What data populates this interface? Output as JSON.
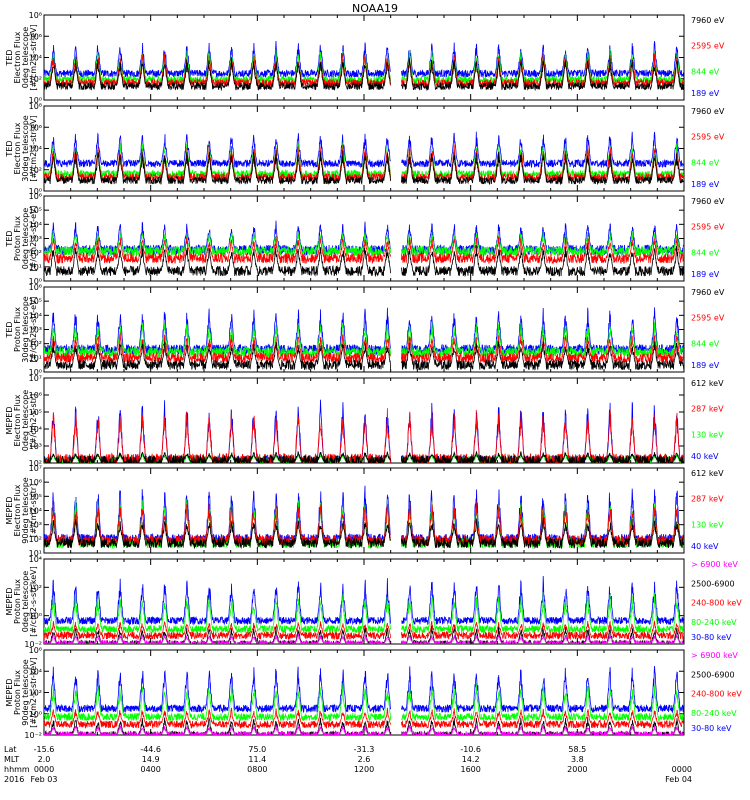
{
  "title": "NOAA19",
  "colors": {
    "blue": "#0000ff",
    "red": "#ff0000",
    "green": "#00ff00",
    "black": "#000000",
    "magenta": "#ff00ff"
  },
  "chart_data": [
    {
      "type": "line",
      "panel": "ted-e-0deg",
      "ylabel": [
        "TED",
        "Electron Flux",
        "0deg telescope",
        "[#/cm2-s-str-eV]"
      ],
      "yscale": "log",
      "ylim": [
        1,
        100000000
      ],
      "yticks": [
        "10⁰",
        "10²",
        "10⁴",
        "10⁶",
        "10⁸"
      ],
      "series": [
        {
          "name": "7960 eV",
          "color": "#000000",
          "base": 1.3,
          "peak": 4.1
        },
        {
          "name": "2595 eV",
          "color": "#ff0000",
          "base": 1.6,
          "peak": 4.5
        },
        {
          "name": "844 eV",
          "color": "#00ff00",
          "base": 1.9,
          "peak": 4.9
        },
        {
          "name": "189 eV",
          "color": "#0000ff",
          "base": 2.5,
          "peak": 5.6
        }
      ]
    },
    {
      "type": "line",
      "panel": "ted-e-30deg",
      "ylabel": [
        "TED",
        "Electron Flux",
        "30deg telescope",
        "[#/cm2-s-str-eV]"
      ],
      "yscale": "log",
      "ylim": [
        1,
        100000000
      ],
      "yticks": [
        "10⁰",
        "10²",
        "10⁴",
        "10⁶",
        "10⁸"
      ],
      "series": [
        {
          "name": "7960 eV",
          "color": "#000000",
          "base": 1.0,
          "peak": 3.9
        },
        {
          "name": "2595 eV",
          "color": "#ff0000",
          "base": 1.3,
          "peak": 4.5
        },
        {
          "name": "844 eV",
          "color": "#00ff00",
          "base": 1.6,
          "peak": 4.7
        },
        {
          "name": "189 eV",
          "color": "#0000ff",
          "base": 2.6,
          "peak": 5.7
        }
      ]
    },
    {
      "type": "line",
      "panel": "ted-p-0deg",
      "ylabel": [
        "TED",
        "Proton Flux",
        "0deg telescope",
        "[#/cm2-s-str-eV]"
      ],
      "yscale": "log",
      "ylim": [
        1,
        1000000
      ],
      "yticks": [
        "10⁰",
        "10¹",
        "10²",
        "10³",
        "10⁴",
        "10⁵",
        "10⁶"
      ],
      "series": [
        {
          "name": "7960 eV",
          "color": "#000000",
          "base": 0.7,
          "peak": 2.6
        },
        {
          "name": "2595 eV",
          "color": "#ff0000",
          "base": 1.6,
          "peak": 3.2
        },
        {
          "name": "844 eV",
          "color": "#00ff00",
          "base": 2.1,
          "peak": 3.6
        },
        {
          "name": "189 eV",
          "color": "#0000ff",
          "base": 2.2,
          "peak": 4.3
        }
      ]
    },
    {
      "type": "line",
      "panel": "ted-p-30deg",
      "ylabel": [
        "TED",
        "Proton Flux",
        "30deg telescope",
        "[#/cm2-s-str-eV]"
      ],
      "yscale": "log",
      "ylim": [
        1,
        1000000
      ],
      "yticks": [
        "10⁰",
        "10¹",
        "10²",
        "10³",
        "10⁴",
        "10⁵",
        "10⁶"
      ],
      "series": [
        {
          "name": "7960 eV",
          "color": "#000000",
          "base": 0.5,
          "peak": 2.2
        },
        {
          "name": "2595 eV",
          "color": "#ff0000",
          "base": 1.0,
          "peak": 2.8
        },
        {
          "name": "844 eV",
          "color": "#00ff00",
          "base": 1.4,
          "peak": 3.6
        },
        {
          "name": "189 eV",
          "color": "#0000ff",
          "base": 1.6,
          "peak": 4.6
        }
      ]
    },
    {
      "type": "line",
      "panel": "meped-e-0deg",
      "ylabel": [
        "MEPED",
        "Electron Flux",
        "0deg telescope",
        "[#/cm2-s-str]"
      ],
      "yscale": "log",
      "ylim": [
        100,
        10000000
      ],
      "yticks": [
        "10²",
        "10³",
        "10⁴",
        "10⁵",
        "10⁶",
        "10⁷"
      ],
      "series": [
        {
          "name": "612 keV",
          "color": "#000000",
          "base": 2.1,
          "peak": 2.7
        },
        {
          "name": "287 keV",
          "color": "#ff0000",
          "base": 2.2,
          "peak": 5.3
        },
        {
          "name": "130 keV",
          "color": "#00ff00",
          "base": 2.05,
          "peak": 2.6
        },
        {
          "name": "40 keV",
          "color": "#0000ff",
          "base": 2.1,
          "peak": 5.8
        }
      ]
    },
    {
      "type": "line",
      "panel": "meped-e-90deg",
      "ylabel": [
        "MEPED",
        "Electron Flux",
        "90deg telescope",
        "[#/cm2-s-str]"
      ],
      "yscale": "log",
      "ylim": [
        10,
        10000000
      ],
      "yticks": [
        "10¹",
        "10²",
        "10³",
        "10⁴",
        "10⁵",
        "10⁶",
        "10⁷"
      ],
      "series": [
        {
          "name": "612 keV",
          "color": "#000000",
          "base": 1.7,
          "peak": 3.5
        },
        {
          "name": "287 keV",
          "color": "#ff0000",
          "base": 1.9,
          "peak": 4.7
        },
        {
          "name": "130 keV",
          "color": "#00ff00",
          "base": 1.7,
          "peak": 5.0
        },
        {
          "name": "40 keV",
          "color": "#0000ff",
          "base": 2.0,
          "peak": 6.0
        }
      ]
    },
    {
      "type": "line",
      "panel": "meped-p-0deg",
      "ylabel": [
        "MEPED",
        "Proton Flux",
        "0deg telescope",
        "[#/cm2-s-str-keV]"
      ],
      "yscale": "log",
      "ylim": [
        0.01,
        1000000
      ],
      "yticks": [
        "10⁻²",
        "10⁰",
        "10²",
        "10⁴"
      ],
      "series": [
        {
          "name": "> 6900 keV",
          "color": "#ff00ff",
          "base": -2.0,
          "peak": -1.0
        },
        {
          "name": "2500-6900",
          "color": "#000000",
          "base": -2.0,
          "peak": -0.3
        },
        {
          "name": "240-800 keV",
          "color": "#ff0000",
          "base": -1.2,
          "peak": 0.2
        },
        {
          "name": "80-240 keV",
          "color": "#00ff00",
          "base": -0.6,
          "peak": 2.9
        },
        {
          "name": "30-80 keV",
          "color": "#0000ff",
          "base": 0.2,
          "peak": 4.4
        }
      ]
    },
    {
      "type": "line",
      "panel": "meped-p-90deg",
      "ylabel": [
        "MEPED",
        "Proton Flux",
        "90deg telescope",
        "[#/cm2-s-str-keV]"
      ],
      "yscale": "log",
      "ylim": [
        0.01,
        1000000
      ],
      "yticks": [
        "10⁻²",
        "10⁰",
        "10²",
        "10⁴",
        "10⁶"
      ],
      "series": [
        {
          "name": "> 6900 keV",
          "color": "#ff00ff",
          "base": -2.0,
          "peak": -1.0
        },
        {
          "name": "2500-6900",
          "color": "#000000",
          "base": -2.0,
          "peak": -0.3
        },
        {
          "name": "240-800 keV",
          "color": "#ff0000",
          "base": -1.0,
          "peak": 0.6
        },
        {
          "name": "80-240 keV",
          "color": "#00ff00",
          "base": -0.3,
          "peak": 3.0
        },
        {
          "name": "30-80 keV",
          "color": "#0000ff",
          "base": 0.5,
          "peak": 4.7
        }
      ]
    }
  ],
  "x_axis": {
    "row_labels": [
      "Lat",
      "MLT",
      "hhmm",
      "2016"
    ],
    "ticks": [
      {
        "lat": "-15.6",
        "mlt": "2.0",
        "hhmm": "0000",
        "date": "Feb 03"
      },
      {
        "lat": "-44.6",
        "mlt": "14.9",
        "hhmm": "0400",
        "date": ""
      },
      {
        "lat": "75.0",
        "mlt": "11.4",
        "hhmm": "0800",
        "date": ""
      },
      {
        "lat": "-31.3",
        "mlt": "2.6",
        "hhmm": "1200",
        "date": ""
      },
      {
        "lat": "-10.6",
        "mlt": "14.2",
        "hhmm": "1600",
        "date": ""
      },
      {
        "lat": "58.5",
        "mlt": "3.8",
        "hhmm": "2000",
        "date": ""
      },
      {
        "lat": "",
        "mlt": "",
        "hhmm": "0000",
        "date": "Feb 04"
      }
    ],
    "data_gap_hours": [
      13.0,
      13.4
    ]
  }
}
